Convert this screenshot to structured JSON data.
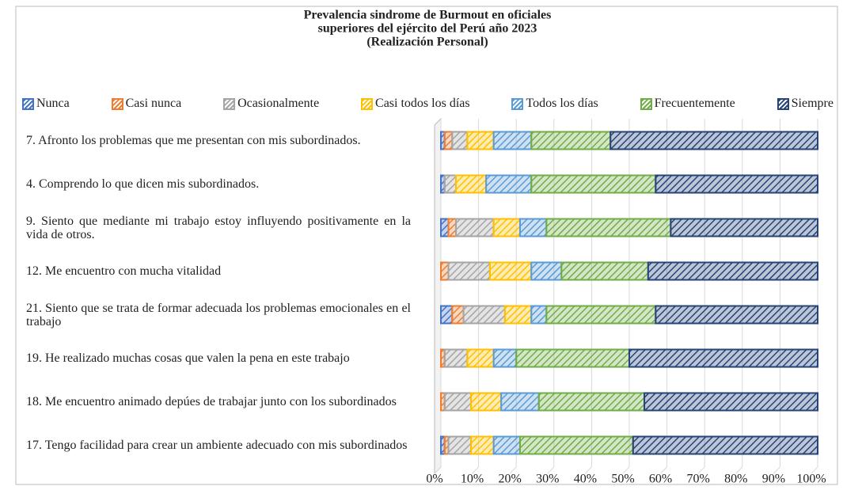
{
  "chart_data": {
    "type": "stacked_barh",
    "title": [
      "Prevalencia sindrome de Burmout en oficiales",
      "superiores del ejército del Perú año 2023",
      "(Realización Personal)"
    ],
    "categories": [
      "7. Afronto los problemas que me presentan con mis subordinados.",
      "4. Comprendo lo que dicen mis subordinados.",
      "9. Siento que mediante mi trabajo estoy influyendo positivamente en la vida de otros.",
      "12. Me encuentro con mucha vitalidad",
      "21. Siento que se trata de formar adecuada los problemas emocionales en el trabajo",
      "19. He realizado muchas cosas que valen la pena en este trabajo",
      "18. Me encuentro animado depúes de trabajar junto con los subordinados",
      "17. Tengo facilidad para crear un ambiente adecuado con mis subordinados"
    ],
    "series": [
      {
        "name": "Nunca",
        "color": "#4472c4",
        "values": [
          1,
          1,
          2,
          0,
          3,
          0,
          0,
          1
        ]
      },
      {
        "name": "Casi nunca",
        "color": "#ed7d31",
        "values": [
          2,
          0,
          2,
          2,
          3,
          1,
          1,
          1
        ]
      },
      {
        "name": "Ocasionalmente",
        "color": "#a5a5a5",
        "values": [
          4,
          3,
          10,
          11,
          11,
          6,
          7,
          6
        ]
      },
      {
        "name": "Casi todos los días",
        "color": "#ffc000",
        "values": [
          7,
          8,
          7,
          11,
          7,
          7,
          8,
          6
        ]
      },
      {
        "name": "Todos los días",
        "color": "#5b9bd5",
        "values": [
          10,
          12,
          7,
          8,
          4,
          6,
          10,
          7
        ]
      },
      {
        "name": "Frecuentemente",
        "color": "#70ad47",
        "values": [
          21,
          33,
          33,
          23,
          29,
          30,
          28,
          30
        ]
      },
      {
        "name": "Siempre",
        "color": "#264478",
        "values": [
          55,
          43,
          39,
          45,
          43,
          50,
          46,
          49
        ]
      }
    ],
    "xlim": [
      0,
      100
    ],
    "xticks": [
      {
        "value": 0,
        "label": "0%"
      },
      {
        "value": 10,
        "label": "10%"
      },
      {
        "value": 20,
        "label": "20%"
      },
      {
        "value": 30,
        "label": "30%"
      },
      {
        "value": 40,
        "label": "40%"
      },
      {
        "value": 50,
        "label": "50%"
      },
      {
        "value": 60,
        "label": "60%"
      },
      {
        "value": 70,
        "label": "70%"
      },
      {
        "value": 80,
        "label": "80%"
      },
      {
        "value": 90,
        "label": "90%"
      },
      {
        "value": 100,
        "label": "100%"
      }
    ],
    "grid": true,
    "legend": "top"
  }
}
